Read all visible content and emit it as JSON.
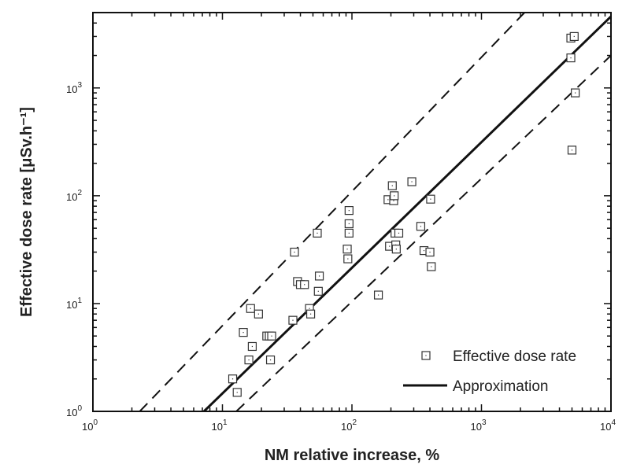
{
  "chart_data": {
    "type": "scatter",
    "title": "",
    "xlabel": "NM relative increase, %",
    "ylabel": "Effective dose rate [μSv.h⁻¹]",
    "x_scale": "log",
    "y_scale": "log",
    "xlim": [
      1,
      10000
    ],
    "ylim": [
      1,
      5000
    ],
    "x_ticks": [
      {
        "value": 1,
        "base": "10",
        "exp": "0"
      },
      {
        "value": 10,
        "base": "10",
        "exp": "1"
      },
      {
        "value": 100,
        "base": "10",
        "exp": "2"
      },
      {
        "value": 1000,
        "base": "10",
        "exp": "3"
      },
      {
        "value": 10000,
        "base": "10",
        "exp": "4"
      }
    ],
    "y_ticks": [
      {
        "value": 1,
        "base": "10",
        "exp": "0"
      },
      {
        "value": 10,
        "base": "10",
        "exp": "1"
      },
      {
        "value": 100,
        "base": "10",
        "exp": "2"
      },
      {
        "value": 1000,
        "base": "10",
        "exp": "3"
      }
    ],
    "grid": false,
    "legend_position": "bottom-right",
    "series": [
      {
        "name": "Effective dose rate",
        "kind": "markers",
        "marker": "open-square",
        "points": [
          [
            12,
            2
          ],
          [
            13,
            1.5
          ],
          [
            14.5,
            5.4
          ],
          [
            16,
            3
          ],
          [
            16.5,
            9
          ],
          [
            17,
            4
          ],
          [
            19,
            8
          ],
          [
            22,
            5
          ],
          [
            23,
            5
          ],
          [
            23.5,
            3
          ],
          [
            24,
            5
          ],
          [
            35,
            7
          ],
          [
            36,
            30
          ],
          [
            38,
            16
          ],
          [
            40,
            15
          ],
          [
            43,
            15
          ],
          [
            47,
            9
          ],
          [
            48,
            8
          ],
          [
            54,
            45
          ],
          [
            55,
            13
          ],
          [
            56,
            18
          ],
          [
            92,
            32
          ],
          [
            93,
            26
          ],
          [
            95,
            45
          ],
          [
            95,
            55
          ],
          [
            95,
            73
          ],
          [
            160,
            12
          ],
          [
            190,
            92
          ],
          [
            195,
            34
          ],
          [
            205,
            124
          ],
          [
            210,
            90
          ],
          [
            212,
            100
          ],
          [
            215,
            45
          ],
          [
            218,
            35
          ],
          [
            220,
            32
          ],
          [
            230,
            45
          ],
          [
            290,
            135
          ],
          [
            340,
            52
          ],
          [
            360,
            31
          ],
          [
            400,
            30
          ],
          [
            405,
            93
          ],
          [
            410,
            22
          ],
          [
            4900,
            2900
          ],
          [
            4900,
            1900
          ],
          [
            5000,
            265
          ],
          [
            5200,
            3000
          ],
          [
            5300,
            900
          ]
        ]
      },
      {
        "name": "Approximation",
        "kind": "line",
        "style": "solid",
        "points": [
          [
            7.2,
            1
          ],
          [
            10000,
            4600
          ]
        ]
      },
      {
        "kind": "line",
        "style": "dashed",
        "points": [
          [
            2.3,
            1
          ],
          [
            2150,
            5000
          ]
        ]
      },
      {
        "kind": "line",
        "style": "dashed",
        "points": [
          [
            12.8,
            1
          ],
          [
            10000,
            2000
          ]
        ]
      }
    ]
  }
}
